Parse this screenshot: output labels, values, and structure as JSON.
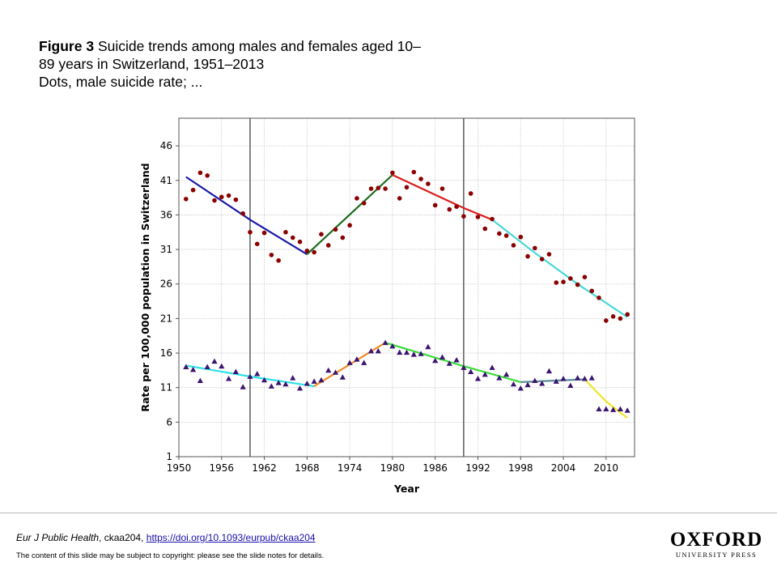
{
  "caption": {
    "figure_label": "Figure 3",
    "line1": " Suicide trends among males and females aged 10–",
    "line2": "89 years in Switzerland,  1951–2013",
    "line3": "Dots, male suicide rate; ..."
  },
  "footer": {
    "journal": "Eur J Public Health",
    "article_id": ", ckaa204, ",
    "doi": "https://doi.org/10.1093/eurpub/ckaa204",
    "notice": "The content of this slide may be subject to copyright: please see the slide notes for details.",
    "logo_main": "OXFORD",
    "logo_sub": "UNIVERSITY PRESS"
  },
  "chart_data": {
    "type": "scatter",
    "xlabel": "Year",
    "ylabel": "Rate per 100,000 population in Switzerland",
    "xlim": [
      1950,
      2014
    ],
    "ylim": [
      1,
      50
    ],
    "x_ticks": [
      1950,
      1956,
      1962,
      1968,
      1974,
      1980,
      1986,
      1992,
      1998,
      2004,
      2010
    ],
    "y_ticks": [
      1,
      6,
      11,
      16,
      21,
      26,
      31,
      36,
      41,
      46
    ],
    "grid": true,
    "vertical_lines": [
      1960,
      1990
    ],
    "series": [
      {
        "marker": "circle",
        "color": "#8b0000",
        "points": [
          [
            1951,
            38.3
          ],
          [
            1952,
            39.6
          ],
          [
            1953,
            42.1
          ],
          [
            1954,
            41.7
          ],
          [
            1955,
            38.1
          ],
          [
            1956,
            38.6
          ],
          [
            1957,
            38.8
          ],
          [
            1958,
            38.2
          ],
          [
            1959,
            36.2
          ],
          [
            1960,
            33.5
          ],
          [
            1961,
            31.8
          ],
          [
            1962,
            33.4
          ],
          [
            1963,
            30.2
          ],
          [
            1964,
            29.4
          ],
          [
            1965,
            33.5
          ],
          [
            1966,
            32.7
          ],
          [
            1967,
            32.1
          ],
          [
            1968,
            30.8
          ],
          [
            1969,
            30.6
          ],
          [
            1970,
            33.2
          ],
          [
            1971,
            31.6
          ],
          [
            1972,
            33.9
          ],
          [
            1973,
            32.7
          ],
          [
            1974,
            34.5
          ],
          [
            1975,
            38.4
          ],
          [
            1976,
            37.7
          ],
          [
            1977,
            39.8
          ],
          [
            1978,
            39.9
          ],
          [
            1979,
            39.8
          ],
          [
            1980,
            42.1
          ],
          [
            1981,
            38.4
          ],
          [
            1982,
            40.0
          ],
          [
            1983,
            42.2
          ],
          [
            1984,
            41.2
          ],
          [
            1985,
            40.5
          ],
          [
            1986,
            37.4
          ],
          [
            1987,
            39.8
          ],
          [
            1988,
            36.8
          ],
          [
            1989,
            37.2
          ],
          [
            1990,
            35.8
          ],
          [
            1991,
            39.1
          ],
          [
            1992,
            35.7
          ],
          [
            1993,
            34.0
          ],
          [
            1994,
            35.4
          ],
          [
            1995,
            33.3
          ],
          [
            1996,
            33.0
          ],
          [
            1997,
            31.6
          ],
          [
            1998,
            32.8
          ],
          [
            1999,
            30.0
          ],
          [
            2000,
            31.2
          ],
          [
            2001,
            29.6
          ],
          [
            2002,
            30.3
          ],
          [
            2003,
            26.2
          ],
          [
            2004,
            26.3
          ],
          [
            2005,
            26.8
          ],
          [
            2006,
            25.9
          ],
          [
            2007,
            27.0
          ],
          [
            2008,
            25.0
          ],
          [
            2009,
            24.0
          ],
          [
            2010,
            20.7
          ],
          [
            2011,
            21.3
          ],
          [
            2012,
            21.0
          ],
          [
            2013,
            21.6
          ]
        ]
      },
      {
        "marker": "triangle",
        "color": "#3b1470",
        "points": [
          [
            1951,
            14.0
          ],
          [
            1952,
            13.6
          ],
          [
            1953,
            12.0
          ],
          [
            1954,
            14.0
          ],
          [
            1955,
            14.8
          ],
          [
            1956,
            14.1
          ],
          [
            1957,
            12.3
          ],
          [
            1958,
            13.3
          ],
          [
            1959,
            11.1
          ],
          [
            1960,
            12.6
          ],
          [
            1961,
            13.0
          ],
          [
            1962,
            12.1
          ],
          [
            1963,
            11.2
          ],
          [
            1964,
            11.7
          ],
          [
            1965,
            11.5
          ],
          [
            1966,
            12.4
          ],
          [
            1967,
            10.9
          ],
          [
            1968,
            11.6
          ],
          [
            1969,
            11.9
          ],
          [
            1970,
            12.1
          ],
          [
            1971,
            13.5
          ],
          [
            1972,
            13.2
          ],
          [
            1973,
            12.5
          ],
          [
            1974,
            14.6
          ],
          [
            1975,
            15.1
          ],
          [
            1976,
            14.6
          ],
          [
            1977,
            16.3
          ],
          [
            1978,
            16.3
          ],
          [
            1979,
            17.5
          ],
          [
            1980,
            17.0
          ],
          [
            1981,
            16.1
          ],
          [
            1982,
            16.1
          ],
          [
            1983,
            15.8
          ],
          [
            1984,
            15.9
          ],
          [
            1985,
            16.9
          ],
          [
            1986,
            14.9
          ],
          [
            1987,
            15.4
          ],
          [
            1988,
            14.5
          ],
          [
            1989,
            15.0
          ],
          [
            1990,
            13.9
          ],
          [
            1991,
            13.3
          ],
          [
            1992,
            12.3
          ],
          [
            1993,
            12.9
          ],
          [
            1994,
            13.9
          ],
          [
            1995,
            12.4
          ],
          [
            1996,
            12.9
          ],
          [
            1997,
            11.5
          ],
          [
            1998,
            10.9
          ],
          [
            1999,
            11.4
          ],
          [
            2000,
            12.0
          ],
          [
            2001,
            11.6
          ],
          [
            2002,
            13.4
          ],
          [
            2003,
            11.9
          ],
          [
            2004,
            12.3
          ],
          [
            2005,
            11.3
          ],
          [
            2006,
            12.4
          ],
          [
            2007,
            12.3
          ],
          [
            2008,
            12.4
          ],
          [
            2009,
            7.9
          ],
          [
            2010,
            7.9
          ],
          [
            2011,
            7.8
          ],
          [
            2012,
            7.9
          ],
          [
            2013,
            7.7
          ]
        ]
      }
    ],
    "trend_segments": [
      {
        "color": "#1a1aa8",
        "points": [
          [
            1951,
            41.5
          ],
          [
            1960,
            35.3
          ],
          [
            1968,
            30.3
          ]
        ]
      },
      {
        "color": "#1e6b1e",
        "points": [
          [
            1968,
            30.3
          ],
          [
            1980,
            41.8
          ]
        ]
      },
      {
        "color": "#dc1e1e",
        "points": [
          [
            1980,
            41.8
          ],
          [
            1990,
            37.0
          ],
          [
            1994,
            35.3
          ]
        ]
      },
      {
        "color": "#4ad8d8",
        "points": [
          [
            1994,
            35.3
          ],
          [
            2000,
            30.5
          ],
          [
            2006,
            26.0
          ],
          [
            2013,
            21.2
          ]
        ]
      },
      {
        "color": "#2ee0e8",
        "points": [
          [
            1951,
            14.2
          ],
          [
            1960,
            12.6
          ],
          [
            1969,
            11.2
          ]
        ]
      },
      {
        "color": "#f08c28",
        "points": [
          [
            1969,
            11.2
          ],
          [
            1979,
            17.5
          ]
        ]
      },
      {
        "color": "#3cdc3c",
        "points": [
          [
            1979,
            17.5
          ],
          [
            1990,
            14.1
          ],
          [
            1998,
            11.8
          ]
        ]
      },
      {
        "color": "#5a8c96",
        "points": [
          [
            1998,
            11.8
          ],
          [
            2007,
            12.2
          ]
        ]
      },
      {
        "color": "#f0e628",
        "points": [
          [
            2007,
            12.2
          ],
          [
            2010,
            9.0
          ],
          [
            2013,
            6.6
          ]
        ]
      }
    ]
  }
}
